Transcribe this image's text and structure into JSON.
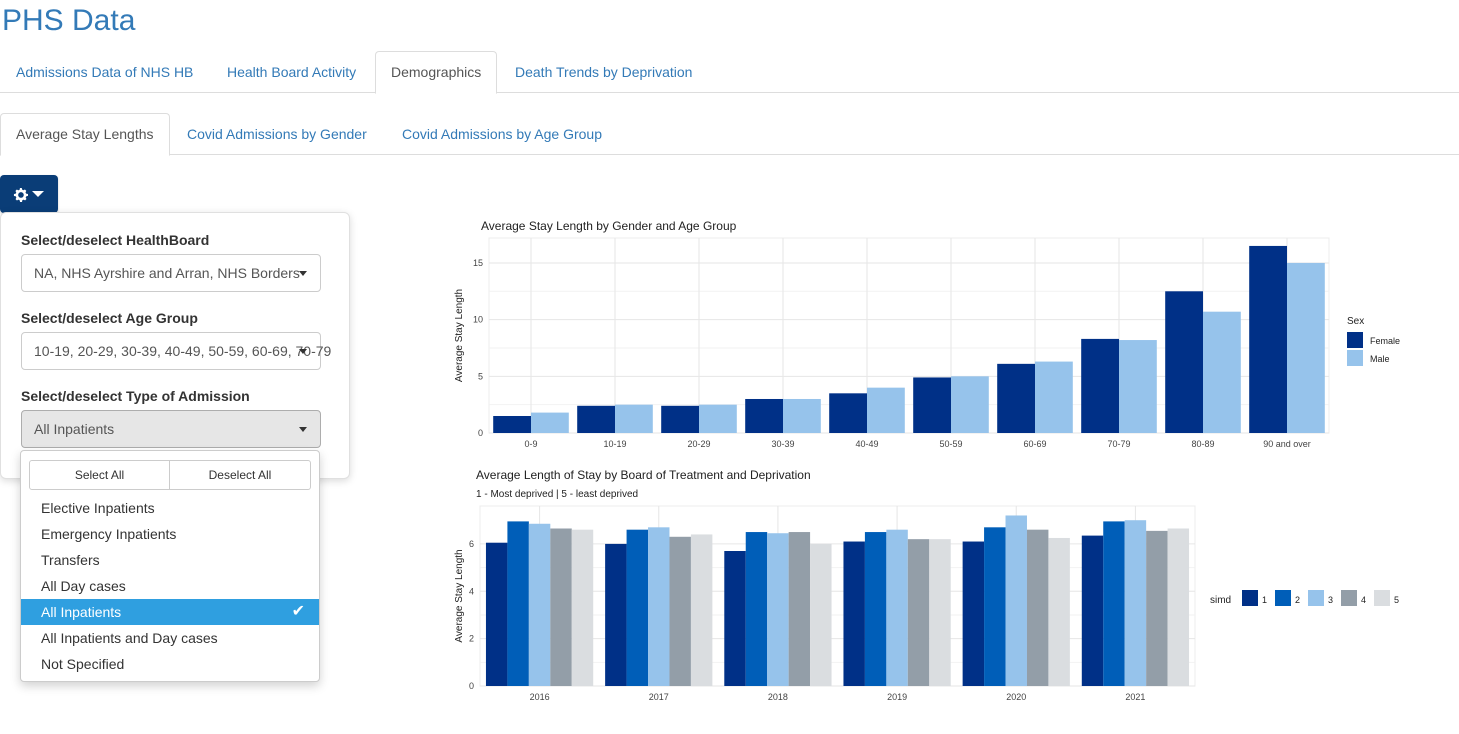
{
  "app": {
    "title": "PHS Data"
  },
  "main_tabs": [
    {
      "label": "Admissions Data of NHS HB"
    },
    {
      "label": "Health Board Activity"
    },
    {
      "label": "Demographics"
    },
    {
      "label": "Death Trends by Deprivation"
    }
  ],
  "sub_tabs": [
    {
      "label": "Average Stay Lengths"
    },
    {
      "label": "Covid Admissions by Gender"
    },
    {
      "label": "Covid Admissions by Age Group"
    }
  ],
  "filters": {
    "healthboard": {
      "label": "Select/deselect HealthBoard",
      "value": "NA, NHS Ayrshire and Arran, NHS Borders"
    },
    "age_group": {
      "label": "Select/deselect Age Group",
      "value": "10-19, 20-29, 30-39, 40-49, 50-59, 60-69, 70-79"
    },
    "admission_type": {
      "label": "Select/deselect Type of Admission",
      "value": "All Inpatients",
      "select_all": "Select All",
      "deselect_all": "Deselect All",
      "options": [
        "Elective Inpatients",
        "Emergency Inpatients",
        "Transfers",
        "All Day cases",
        "All Inpatients",
        "All Inpatients and Day cases",
        "Not Specified"
      ],
      "selected_index": 4,
      "check_icon": "checkmark-icon"
    }
  },
  "colors": {
    "female": "#003087",
    "male": "#96c3eb",
    "simd": [
      "#003087",
      "#005eb8",
      "#96c3eb",
      "#939ea8",
      "#dadde0"
    ],
    "accent": "#337ab7",
    "selected": "#2f9fe0"
  },
  "chart_data": [
    {
      "type": "bar",
      "title": "Average Stay Length by Gender and Age Group",
      "xlabel": "",
      "ylabel": "Average Stay Length",
      "categories": [
        "0-9",
        "10-19",
        "20-29",
        "30-39",
        "40-49",
        "50-59",
        "60-69",
        "70-79",
        "80-89",
        "90 and over"
      ],
      "series": [
        {
          "name": "Female",
          "values": [
            1.5,
            2.4,
            2.4,
            3.0,
            3.5,
            4.9,
            6.1,
            8.3,
            12.5,
            16.5
          ]
        },
        {
          "name": "Male",
          "values": [
            1.8,
            2.5,
            2.5,
            3.0,
            4.0,
            5.0,
            6.3,
            8.2,
            10.7,
            15.0
          ]
        }
      ],
      "yticks": [
        0,
        5,
        10,
        15
      ],
      "ylim": [
        0,
        17.2
      ],
      "legend_title": "Sex",
      "legend_position": "right",
      "grid": true
    },
    {
      "type": "bar",
      "title": "Average Length of Stay by Board of Treatment and Deprivation",
      "subtitle": "1 - Most deprived | 5 - least deprived",
      "xlabel": "",
      "ylabel": "Average Stay Length",
      "categories": [
        "2016",
        "2017",
        "2018",
        "2019",
        "2020",
        "2021"
      ],
      "series": [
        {
          "name": "1",
          "values": [
            6.05,
            6.0,
            5.7,
            6.1,
            6.1,
            6.35
          ]
        },
        {
          "name": "2",
          "values": [
            6.95,
            6.6,
            6.5,
            6.5,
            6.7,
            6.95
          ]
        },
        {
          "name": "3",
          "values": [
            6.85,
            6.7,
            6.45,
            6.6,
            7.2,
            7.0
          ]
        },
        {
          "name": "4",
          "values": [
            6.65,
            6.3,
            6.5,
            6.2,
            6.6,
            6.55
          ]
        },
        {
          "name": "5",
          "values": [
            6.6,
            6.4,
            6.0,
            6.2,
            6.25,
            6.65
          ]
        }
      ],
      "yticks": [
        0,
        2,
        4,
        6
      ],
      "ylim": [
        0,
        7.6
      ],
      "legend_title": "simd",
      "legend_position": "right",
      "grid": true
    }
  ]
}
